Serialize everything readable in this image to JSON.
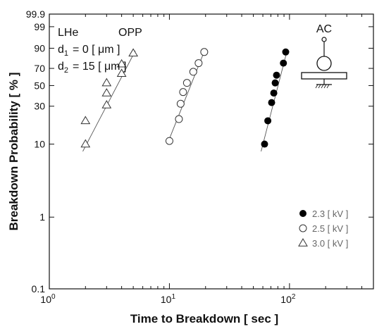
{
  "chart_data": {
    "type": "scatter",
    "xlabel": "Time to Breakdown  [ sec ]",
    "ylabel": "Breakdown  Probability  [ % ]",
    "x_scale": "log",
    "y_scale": "weibull-probability",
    "xlim": [
      1,
      500
    ],
    "ylim": [
      0.1,
      99.9
    ],
    "x_ticks": [
      {
        "value": 1,
        "base": "10",
        "exp": "0"
      },
      {
        "value": 10,
        "base": "10",
        "exp": "1"
      },
      {
        "value": 100,
        "base": "10",
        "exp": "2"
      }
    ],
    "y_ticks": [
      {
        "value": 0.1,
        "label": "0.1"
      },
      {
        "value": 1,
        "label": "1"
      },
      {
        "value": 10,
        "label": "10"
      },
      {
        "value": 30,
        "label": "30"
      },
      {
        "value": 50,
        "label": "50"
      },
      {
        "value": 70,
        "label": "70"
      },
      {
        "value": 90,
        "label": "90"
      },
      {
        "value": 99,
        "label": "99"
      },
      {
        "value": 99.9,
        "label": "99.9"
      }
    ],
    "grid": false,
    "legend_position": "bottom-right",
    "annotations": {
      "medium": "LHe",
      "configuration": "OPP",
      "d1_label": "d",
      "d1_sub": "1",
      "d1_value": "=   0 [ μm ]",
      "d2_label": "d",
      "d2_sub": "2",
      "d2_value": "= 15 [ μm ]",
      "electrode_label": "AC"
    },
    "series": [
      {
        "name": "2.3 [ kV ]",
        "marker": "filled-circle",
        "x": [
          62,
          66,
          71,
          74,
          76,
          78,
          89,
          93
        ],
        "y": [
          10,
          20,
          33,
          42,
          53,
          62,
          76,
          87
        ],
        "fit": {
          "x": [
            58,
            96
          ],
          "y": [
            8,
            89
          ]
        }
      },
      {
        "name": "2.5 [ kV ]",
        "marker": "open-circle",
        "x": [
          10,
          12,
          12.4,
          13,
          14,
          15.8,
          17.5,
          19.5
        ],
        "y": [
          11,
          21,
          32,
          43,
          53,
          66,
          76,
          87
        ],
        "fit": {
          "x": [
            9.6,
            20
          ],
          "y": [
            10,
            90
          ]
        }
      },
      {
        "name": "3.0 [ kV ]",
        "marker": "open-triangle",
        "x": [
          2,
          2,
          3,
          3,
          3,
          4,
          4,
          5
        ],
        "y": [
          10,
          20,
          31,
          42,
          53,
          64,
          75,
          86
        ],
        "fit": {
          "x": [
            1.9,
            5.2
          ],
          "y": [
            8,
            88
          ]
        }
      }
    ]
  }
}
